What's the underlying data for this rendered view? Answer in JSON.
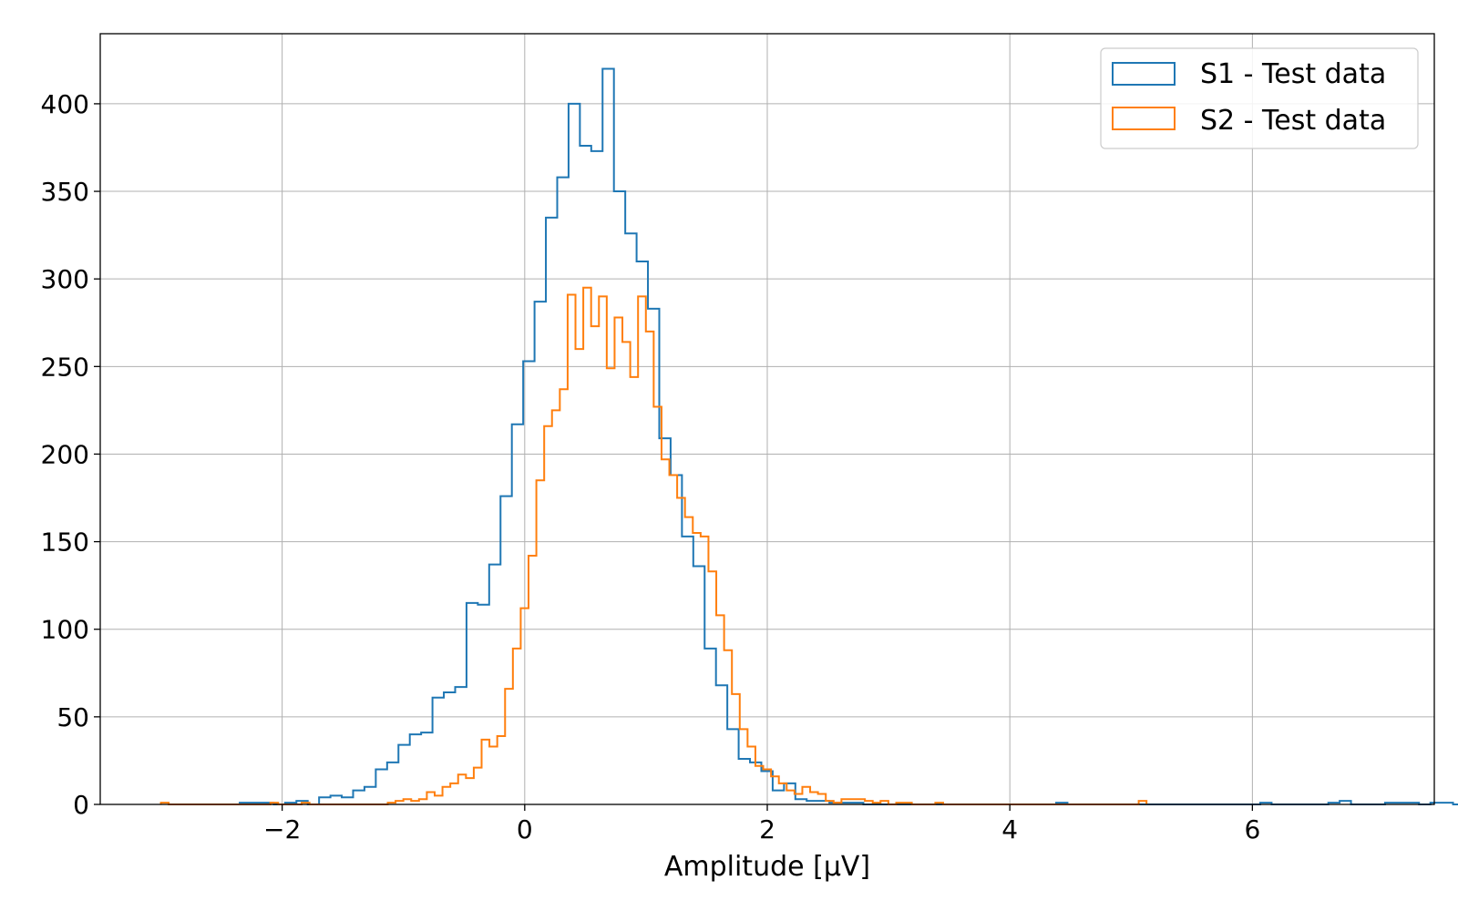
{
  "chart_data": {
    "type": "histogram",
    "title": "",
    "xlabel": "Amplitude [μV]",
    "ylabel": "",
    "xlim": [
      -3.5,
      7.5
    ],
    "ylim": [
      0,
      440
    ],
    "xticks": [
      -2,
      0,
      2,
      4,
      6
    ],
    "xtick_labels": [
      "−2",
      "0",
      "2",
      "4",
      "6"
    ],
    "yticks": [
      0,
      50,
      100,
      150,
      200,
      250,
      300,
      350,
      400
    ],
    "ytick_labels": [
      "0",
      "50",
      "100",
      "150",
      "200",
      "250",
      "300",
      "350",
      "400"
    ],
    "grid": true,
    "legend": "top-right",
    "series": [
      {
        "name": "S1 - Test data",
        "color": "#1f77b4",
        "bin_start": -2.35,
        "bin_width": 0.0935,
        "counts": [
          1,
          1,
          1,
          0,
          1,
          2,
          0,
          4,
          5,
          4,
          8,
          10,
          20,
          24,
          34,
          40,
          41,
          61,
          64,
          67,
          115,
          114,
          137,
          176,
          217,
          253,
          287,
          335,
          358,
          400,
          376,
          373,
          420,
          350,
          326,
          310,
          283,
          209,
          188,
          153,
          136,
          89,
          68,
          43,
          26,
          24,
          19,
          8,
          12,
          3,
          2,
          2,
          1,
          1,
          1,
          0,
          0,
          0,
          0,
          0,
          0,
          0,
          0,
          0,
          0,
          0,
          0,
          0,
          0,
          0,
          0,
          0,
          1,
          0,
          0,
          0,
          0,
          0,
          0,
          0,
          0,
          0,
          0,
          0,
          0,
          0,
          0,
          0,
          0,
          0,
          1,
          0,
          0,
          0,
          0,
          0,
          1,
          2,
          0,
          0,
          0,
          1,
          1,
          1,
          0,
          1,
          1,
          0,
          0,
          1,
          1,
          0,
          1,
          1,
          1,
          1
        ]
      },
      {
        "name": "S2 - Test data",
        "color": "#ff7f0e",
        "bin_start": -3.0,
        "bin_width": 0.0645,
        "counts": [
          1,
          0,
          0,
          0,
          0,
          0,
          0,
          0,
          0,
          0,
          0,
          0,
          0,
          0,
          1,
          0,
          0,
          0,
          1,
          0,
          0,
          0,
          0,
          0,
          0,
          0,
          0,
          0,
          0,
          1,
          2,
          3,
          2,
          3,
          7,
          5,
          10,
          12,
          17,
          15,
          21,
          37,
          33,
          39,
          66,
          89,
          112,
          142,
          185,
          216,
          225,
          237,
          291,
          260,
          295,
          273,
          290,
          249,
          278,
          264,
          244,
          290,
          270,
          227,
          197,
          188,
          175,
          164,
          155,
          153,
          133,
          108,
          88,
          63,
          43,
          33,
          22,
          20,
          16,
          12,
          8,
          6,
          10,
          7,
          6,
          2,
          1,
          3,
          3,
          3,
          2,
          1,
          2,
          0,
          1,
          1,
          0,
          0,
          0,
          1,
          0,
          0,
          0,
          0,
          0,
          0,
          0,
          0,
          0,
          0,
          0,
          0,
          0,
          0,
          0,
          0,
          0,
          0,
          0,
          0,
          0,
          0,
          0,
          0,
          0,
          2
        ]
      }
    ]
  }
}
